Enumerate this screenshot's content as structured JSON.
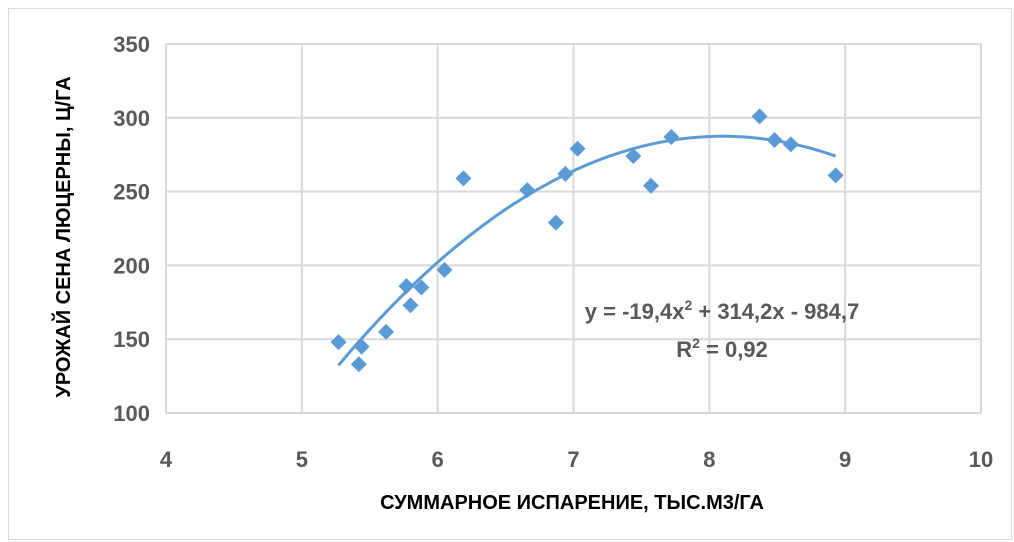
{
  "chart_data": {
    "type": "scatter",
    "xlabel": "СУММАРНОЕ ИСПАРЕНИЕ, ТЫС.М3/ГА",
    "ylabel": "УРОЖАЙ СЕНА ЛЮЦЕРНЫ, Ц/ГА",
    "xlim": [
      4,
      10
    ],
    "ylim": [
      100,
      350
    ],
    "x_ticks": [
      "4",
      "5",
      "6",
      "7",
      "8",
      "9",
      "10"
    ],
    "y_ticks": [
      "100",
      "150",
      "200",
      "250",
      "300",
      "350"
    ],
    "grid": true,
    "marker": "diamond",
    "colors": {
      "points": "#5b9bd5",
      "trendline": "#5b9bd5",
      "grid": "#d9d9d9",
      "text": "#595959"
    },
    "points": [
      {
        "x": 5.27,
        "y": 148
      },
      {
        "x": 5.42,
        "y": 133
      },
      {
        "x": 5.44,
        "y": 145
      },
      {
        "x": 5.62,
        "y": 155
      },
      {
        "x": 5.77,
        "y": 186
      },
      {
        "x": 5.8,
        "y": 173
      },
      {
        "x": 5.88,
        "y": 185
      },
      {
        "x": 6.05,
        "y": 197
      },
      {
        "x": 6.19,
        "y": 259
      },
      {
        "x": 6.66,
        "y": 251
      },
      {
        "x": 6.87,
        "y": 229
      },
      {
        "x": 6.94,
        "y": 262
      },
      {
        "x": 7.03,
        "y": 279
      },
      {
        "x": 7.44,
        "y": 274
      },
      {
        "x": 7.57,
        "y": 254
      },
      {
        "x": 7.72,
        "y": 287
      },
      {
        "x": 8.37,
        "y": 301
      },
      {
        "x": 8.48,
        "y": 285
      },
      {
        "x": 8.6,
        "y": 282
      },
      {
        "x": 8.93,
        "y": 261
      }
    ],
    "trendline": {
      "type": "polynomial",
      "coefficients": [
        -19.4,
        314.2,
        -984.7
      ],
      "x_range": [
        5.27,
        8.93
      ],
      "equation_main": "y = -19,4x",
      "equation_sup": "2",
      "equation_rest": " + 314,2x - 984,7",
      "r2_main": "R",
      "r2_sup": "2",
      "r2_rest": " = 0,92"
    }
  }
}
